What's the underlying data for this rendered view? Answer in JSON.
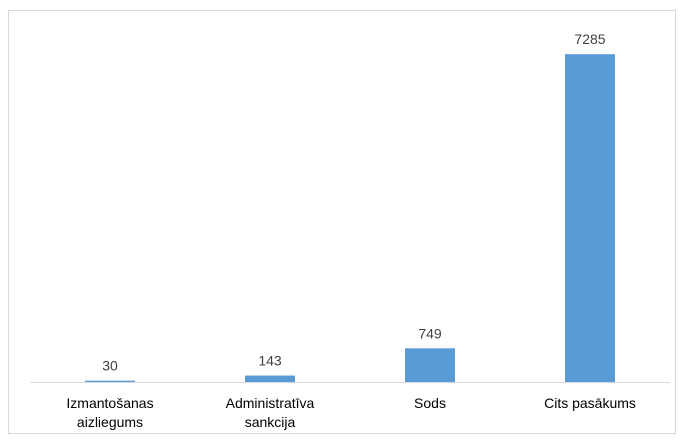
{
  "chart_data": {
    "type": "bar",
    "title": "",
    "xlabel": "",
    "ylabel": "",
    "categories": [
      [
        "Izmantošanas",
        "aizliegums"
      ],
      [
        "Administratīva",
        "sankcija"
      ],
      [
        "Sods"
      ],
      [
        "Cits pasākums"
      ]
    ],
    "values": [
      30,
      143,
      749,
      7285
    ],
    "ylim": [
      0,
      8000
    ],
    "grid": false,
    "legend": "none",
    "data_labels": true,
    "colors": {
      "bar": "#5b9bd5",
      "axis": "#d9d9d9",
      "frame": "#d9d9d9",
      "data_label": "#404040",
      "tick_label": "#000000"
    }
  }
}
